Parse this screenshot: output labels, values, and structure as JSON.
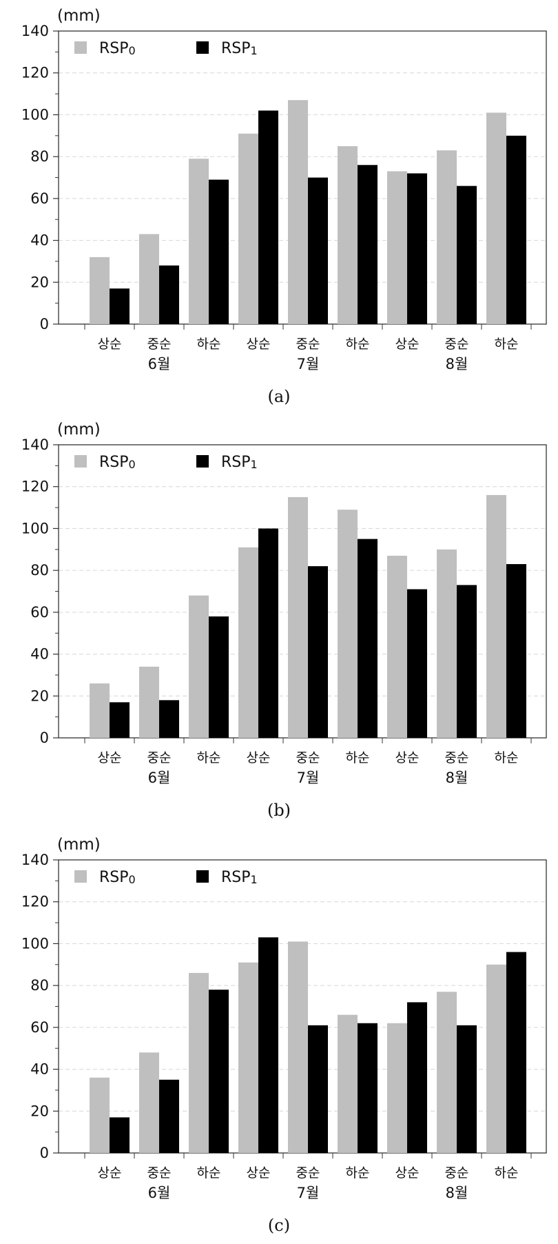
{
  "chart_data": [
    {
      "type": "bar",
      "caption": "(a)",
      "unit": "(mm)",
      "ylim": [
        0,
        140
      ],
      "yticks": [
        0,
        20,
        40,
        60,
        80,
        100,
        120,
        140
      ],
      "grid": true,
      "legend_position": "top-left",
      "categories": [
        "상순",
        "중순",
        "하순",
        "상순",
        "중순",
        "하순",
        "상순",
        "중순",
        "하순"
      ],
      "groups": [
        {
          "label": "6월",
          "start": 0,
          "end": 2
        },
        {
          "label": "7월",
          "start": 3,
          "end": 5
        },
        {
          "label": "8월",
          "start": 6,
          "end": 8
        }
      ],
      "series": [
        {
          "name": "RSP",
          "sub": "0",
          "color": "#bfbfbf",
          "values": [
            32,
            43,
            79,
            91,
            107,
            85,
            73,
            83,
            101
          ]
        },
        {
          "name": "RSP",
          "sub": "1",
          "color": "#000000",
          "values": [
            17,
            28,
            69,
            102,
            70,
            76,
            72,
            66,
            90
          ]
        }
      ]
    },
    {
      "type": "bar",
      "caption": "(b)",
      "unit": "(mm)",
      "ylim": [
        0,
        140
      ],
      "yticks": [
        0,
        20,
        40,
        60,
        80,
        100,
        120,
        140
      ],
      "grid": true,
      "legend_position": "top-left",
      "categories": [
        "상순",
        "중순",
        "하순",
        "상순",
        "중순",
        "하순",
        "상순",
        "중순",
        "하순"
      ],
      "groups": [
        {
          "label": "6월",
          "start": 0,
          "end": 2
        },
        {
          "label": "7월",
          "start": 3,
          "end": 5
        },
        {
          "label": "8월",
          "start": 6,
          "end": 8
        }
      ],
      "series": [
        {
          "name": "RSP",
          "sub": "0",
          "color": "#bfbfbf",
          "values": [
            26,
            34,
            68,
            91,
            115,
            109,
            87,
            90,
            116
          ]
        },
        {
          "name": "RSP",
          "sub": "1",
          "color": "#000000",
          "values": [
            17,
            18,
            58,
            100,
            82,
            95,
            71,
            73,
            83
          ]
        }
      ]
    },
    {
      "type": "bar",
      "caption": "(c)",
      "unit": "(mm)",
      "ylim": [
        0,
        140
      ],
      "yticks": [
        0,
        20,
        40,
        60,
        80,
        100,
        120,
        140
      ],
      "grid": true,
      "legend_position": "top-left",
      "categories": [
        "상순",
        "중순",
        "하순",
        "상순",
        "중순",
        "하순",
        "상순",
        "중순",
        "하순"
      ],
      "groups": [
        {
          "label": "6월",
          "start": 0,
          "end": 2
        },
        {
          "label": "7월",
          "start": 3,
          "end": 5
        },
        {
          "label": "8월",
          "start": 6,
          "end": 8
        }
      ],
      "series": [
        {
          "name": "RSP",
          "sub": "0",
          "color": "#bfbfbf",
          "values": [
            36,
            48,
            86,
            91,
            101,
            66,
            62,
            77,
            90
          ]
        },
        {
          "name": "RSP",
          "sub": "1",
          "color": "#000000",
          "values": [
            17,
            35,
            78,
            103,
            61,
            62,
            72,
            61,
            96
          ]
        }
      ]
    }
  ]
}
